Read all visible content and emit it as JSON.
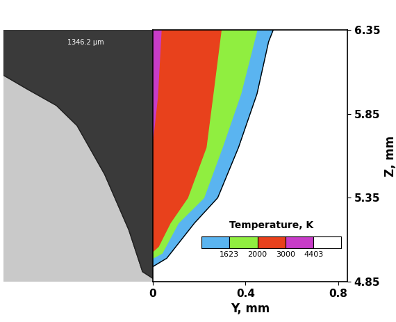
{
  "chart_data": {
    "type": "contour",
    "xlabel": "Y, mm",
    "ylabel": "Z, mm",
    "xlim": [
      0,
      0.84
    ],
    "ylim": [
      4.85,
      6.35
    ],
    "xticks": [
      0,
      0.4,
      0.8
    ],
    "yticks": [
      4.85,
      5.35,
      5.85,
      6.35
    ],
    "legend_title": "Temperature, K",
    "levels": [
      1623,
      2000,
      3000,
      4403
    ],
    "colors": [
      "#5ab4f0",
      "#90ee40",
      "#e8411c",
      "#c83cc8",
      "#ffffff"
    ],
    "isotherms": [
      {
        "level": 1623,
        "y": [
          0.52,
          0.5,
          0.45,
          0.37,
          0.28,
          0.18,
          0.06,
          0
        ],
        "z": [
          6.35,
          6.28,
          5.97,
          5.65,
          5.35,
          5.2,
          4.99,
          4.94
        ]
      },
      {
        "level": 2000,
        "y": [
          0.45,
          0.38,
          0.3,
          0.22,
          0.11,
          0.04,
          0
        ],
        "z": [
          6.35,
          5.97,
          5.65,
          5.35,
          5.2,
          5.02,
          4.99
        ]
      },
      {
        "level": 3000,
        "y": [
          0.295,
          0.26,
          0.23,
          0.15,
          0.075,
          0.024,
          0
        ],
        "z": [
          6.35,
          5.97,
          5.65,
          5.35,
          5.2,
          5.06,
          5.03
        ]
      },
      {
        "level": 4403,
        "y": [
          0.036,
          0.02,
          0
        ],
        "z": [
          6.35,
          5.95,
          5.7
        ]
      }
    ],
    "micrograph": {
      "label": "1346.2 µm",
      "xlim": [
        -0.65,
        0
      ],
      "fusion_line": {
        "y": [
          -0.65,
          -0.65,
          -0.55,
          -0.42,
          -0.33,
          -0.21,
          -0.105,
          -0.045,
          0
        ],
        "z": [
          6.35,
          6.08,
          6.0,
          5.9,
          5.78,
          5.49,
          5.16,
          4.91,
          4.87
        ]
      }
    }
  }
}
